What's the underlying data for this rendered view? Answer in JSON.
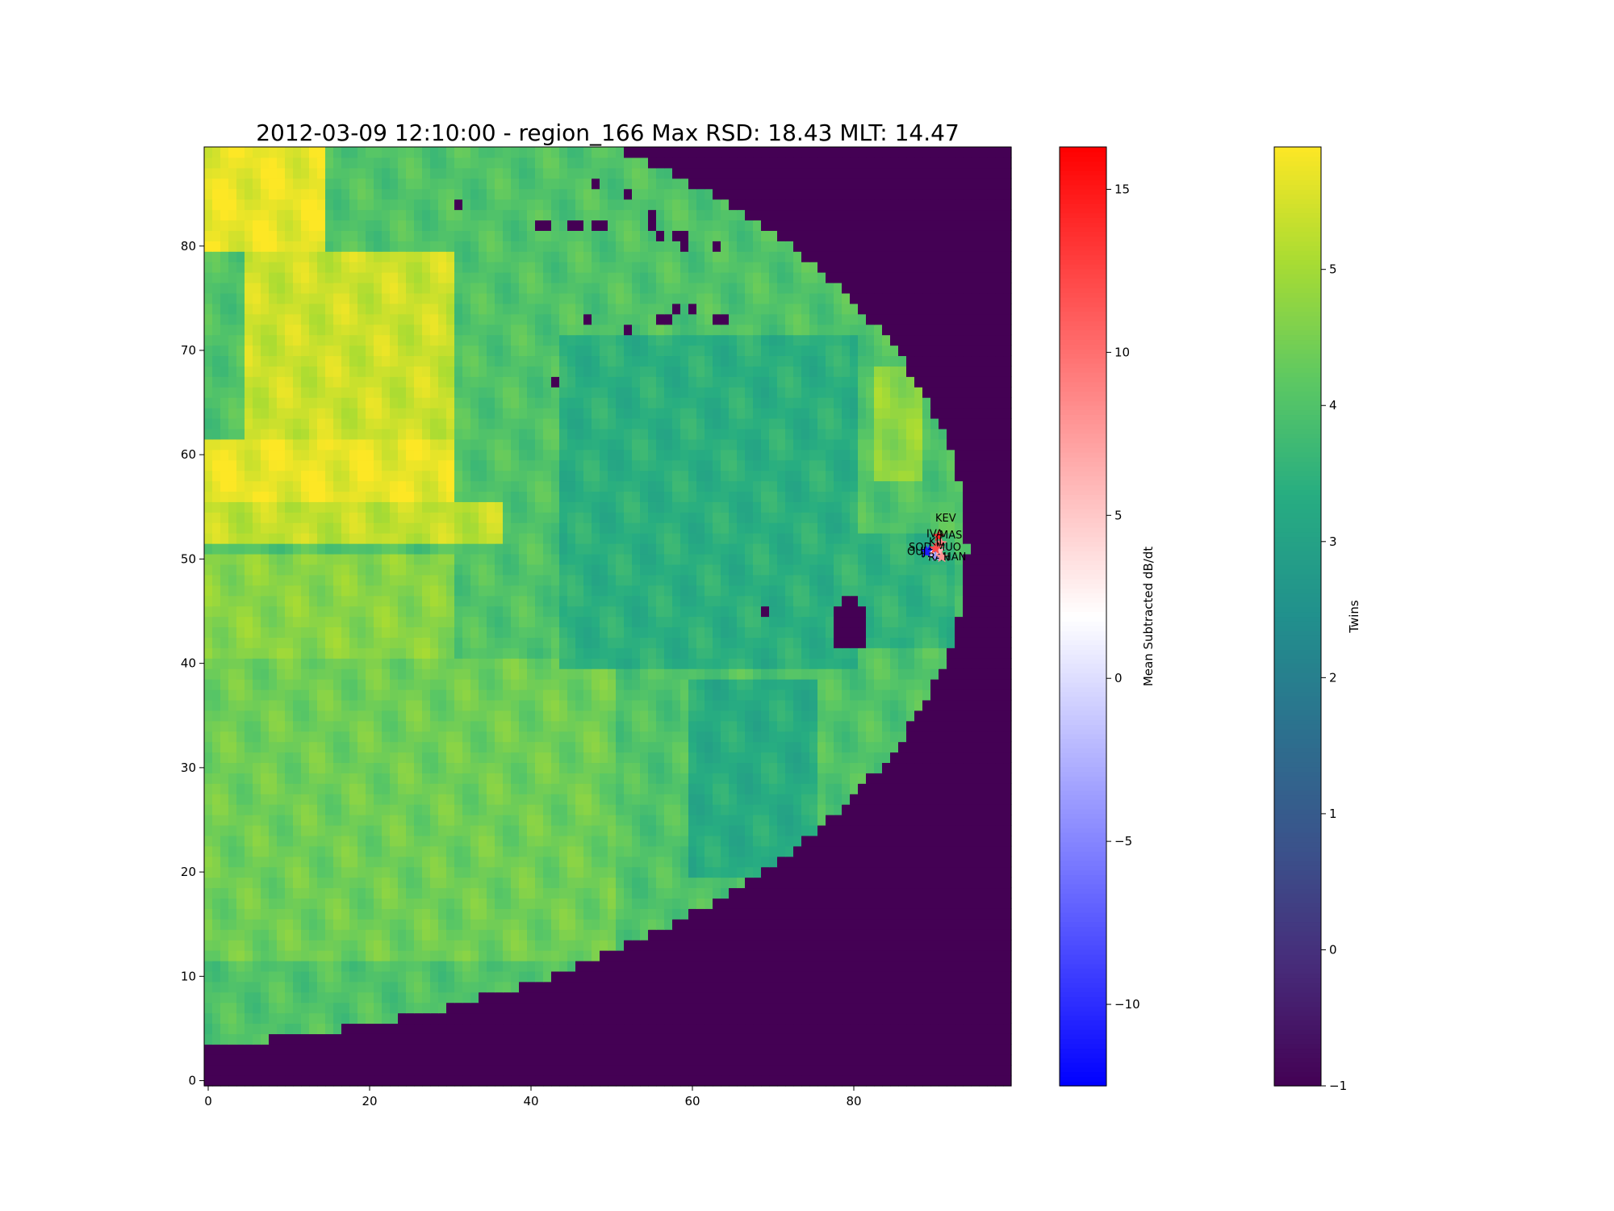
{
  "chart_data": {
    "type": "heatmap",
    "title": "2012-03-09 12:10:00 - region_166 Max RSD: 18.43 MLT: 14.47",
    "xlabel": "",
    "ylabel": "",
    "xlim": [
      -0.5,
      99.5
    ],
    "ylim": [
      -0.5,
      89.5
    ],
    "x_ticks": [
      0,
      20,
      40,
      60,
      80
    ],
    "y_ticks": [
      0,
      10,
      20,
      30,
      40,
      50,
      60,
      70,
      80
    ],
    "fill_value": -1,
    "colorbars": [
      {
        "label": "Mean Subtracted dB/dt",
        "colormap": "bwr",
        "vmin": -12.5,
        "vmax": 16.3,
        "ticks": [
          -10,
          -5,
          0,
          5,
          10,
          15
        ]
      },
      {
        "label": "Twins",
        "colormap": "viridis",
        "vmin": -1,
        "vmax": 5.9,
        "ticks": [
          -1,
          0,
          1,
          2,
          3,
          4,
          5
        ]
      }
    ],
    "stations": [
      {
        "name": "KEV",
        "x": 90.5,
        "y": 52.2,
        "value": 14
      },
      {
        "name": "MAS",
        "x": 90.8,
        "y": 51.5,
        "value": 9
      },
      {
        "name": "IVA",
        "x": 90.4,
        "y": 51.3,
        "value": 11
      },
      {
        "name": "SOD",
        "x": 89.4,
        "y": 50.8,
        "value": -12
      },
      {
        "name": "PEL",
        "x": 89.7,
        "y": 50.5,
        "value": 3
      },
      {
        "name": "RAN",
        "x": 90.2,
        "y": 50.3,
        "value": -4
      },
      {
        "name": "MUO",
        "x": 90.6,
        "y": 50.8,
        "value": 6
      },
      {
        "name": "KIL",
        "x": 90.1,
        "y": 51.0,
        "value": 12
      },
      {
        "name": "OUJ",
        "x": 89.0,
        "y": 50.7,
        "value": -11
      },
      {
        "name": "HAN",
        "x": 90.9,
        "y": 50.2,
        "value": 8
      }
    ],
    "shape": {
      "mask_center_x": -14,
      "mask_center_y": 51,
      "mask_radius_x": 108,
      "mask_radius_y": 48
    },
    "regions": [
      {
        "x0": 0,
        "x1": 30,
        "y0": 56,
        "y1": 61,
        "value": 5.7
      },
      {
        "x0": 0,
        "x1": 14,
        "y0": 80,
        "y1": 89,
        "value": 5.7
      },
      {
        "x0": 5,
        "x1": 30,
        "y0": 62,
        "y1": 79,
        "value": 5.4
      },
      {
        "x0": 0,
        "x1": 36,
        "y0": 52,
        "y1": 55,
        "value": 5.3
      },
      {
        "x0": 0,
        "x1": 30,
        "y0": 40,
        "y1": 50,
        "value": 4.7
      },
      {
        "x0": 0,
        "x1": 50,
        "y0": 12,
        "y1": 40,
        "value": 4.4
      },
      {
        "x0": 44,
        "x1": 80,
        "y0": 40,
        "y1": 71,
        "value": 3.4
      },
      {
        "x0": 78,
        "x1": 92,
        "y0": 42,
        "y1": 52,
        "value": 3.5
      },
      {
        "x0": 60,
        "x1": 75,
        "y0": 20,
        "y1": 38,
        "value": 3.3
      },
      {
        "x0": 83,
        "x1": 88,
        "y0": 58,
        "y1": 68,
        "value": 4.8
      }
    ],
    "holes": [
      {
        "x": 31,
        "y": 84
      },
      {
        "x": 48,
        "y": 86
      },
      {
        "x": 52,
        "y": 85
      },
      {
        "x": 41,
        "y": 82
      },
      {
        "x": 42,
        "y": 82
      },
      {
        "x": 45,
        "y": 82
      },
      {
        "x": 46,
        "y": 82
      },
      {
        "x": 48,
        "y": 82
      },
      {
        "x": 49,
        "y": 82
      },
      {
        "x": 55,
        "y": 82
      },
      {
        "x": 55,
        "y": 83
      },
      {
        "x": 56,
        "y": 81
      },
      {
        "x": 58,
        "y": 81
      },
      {
        "x": 59,
        "y": 81
      },
      {
        "x": 59,
        "y": 80
      },
      {
        "x": 63,
        "y": 80
      },
      {
        "x": 47,
        "y": 73
      },
      {
        "x": 52,
        "y": 72
      },
      {
        "x": 56,
        "y": 73
      },
      {
        "x": 57,
        "y": 73
      },
      {
        "x": 58,
        "y": 74
      },
      {
        "x": 60,
        "y": 74
      },
      {
        "x": 63,
        "y": 73
      },
      {
        "x": 64,
        "y": 73
      },
      {
        "x": 43,
        "y": 67
      },
      {
        "x": 69,
        "y": 45
      },
      {
        "x": 78,
        "y": 42
      },
      {
        "x": 79,
        "y": 42
      },
      {
        "x": 80,
        "y": 42
      },
      {
        "x": 81,
        "y": 42
      },
      {
        "x": 78,
        "y": 43
      },
      {
        "x": 79,
        "y": 43
      },
      {
        "x": 80,
        "y": 43
      },
      {
        "x": 81,
        "y": 43
      },
      {
        "x": 78,
        "y": 44
      },
      {
        "x": 79,
        "y": 44
      },
      {
        "x": 80,
        "y": 44
      },
      {
        "x": 81,
        "y": 44
      },
      {
        "x": 78,
        "y": 45
      },
      {
        "x": 79,
        "y": 45
      },
      {
        "x": 80,
        "y": 45
      },
      {
        "x": 81,
        "y": 45
      },
      {
        "x": 79,
        "y": 46
      },
      {
        "x": 80,
        "y": 46
      }
    ]
  }
}
